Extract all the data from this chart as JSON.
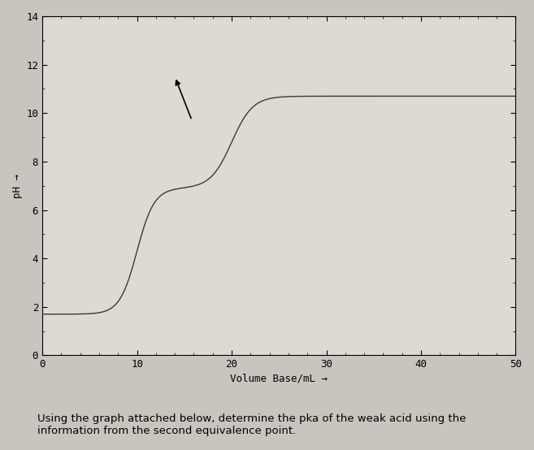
{
  "title": "",
  "xlabel": "Volume Base/mL →",
  "ylabel": "pH →",
  "xlim": [
    0,
    50
  ],
  "ylim": [
    0,
    14
  ],
  "xticks": [
    0,
    10,
    20,
    30,
    40,
    50
  ],
  "yticks": [
    0,
    2,
    4,
    6,
    8,
    10,
    12,
    14
  ],
  "curve_color": "#3a3a3a",
  "fig_bg_color": "#c8c5be",
  "plot_bg_color": "#dedad2",
  "figsize": [
    6.57,
    5.54
  ],
  "dpi": 100,
  "cursor_x": 14.0,
  "cursor_y": 11.5,
  "text_below": "Using the graph attached below, determine the pka of the weak acid using the\ninformation from the second equivalence point.",
  "text_fontsize": 9.5
}
